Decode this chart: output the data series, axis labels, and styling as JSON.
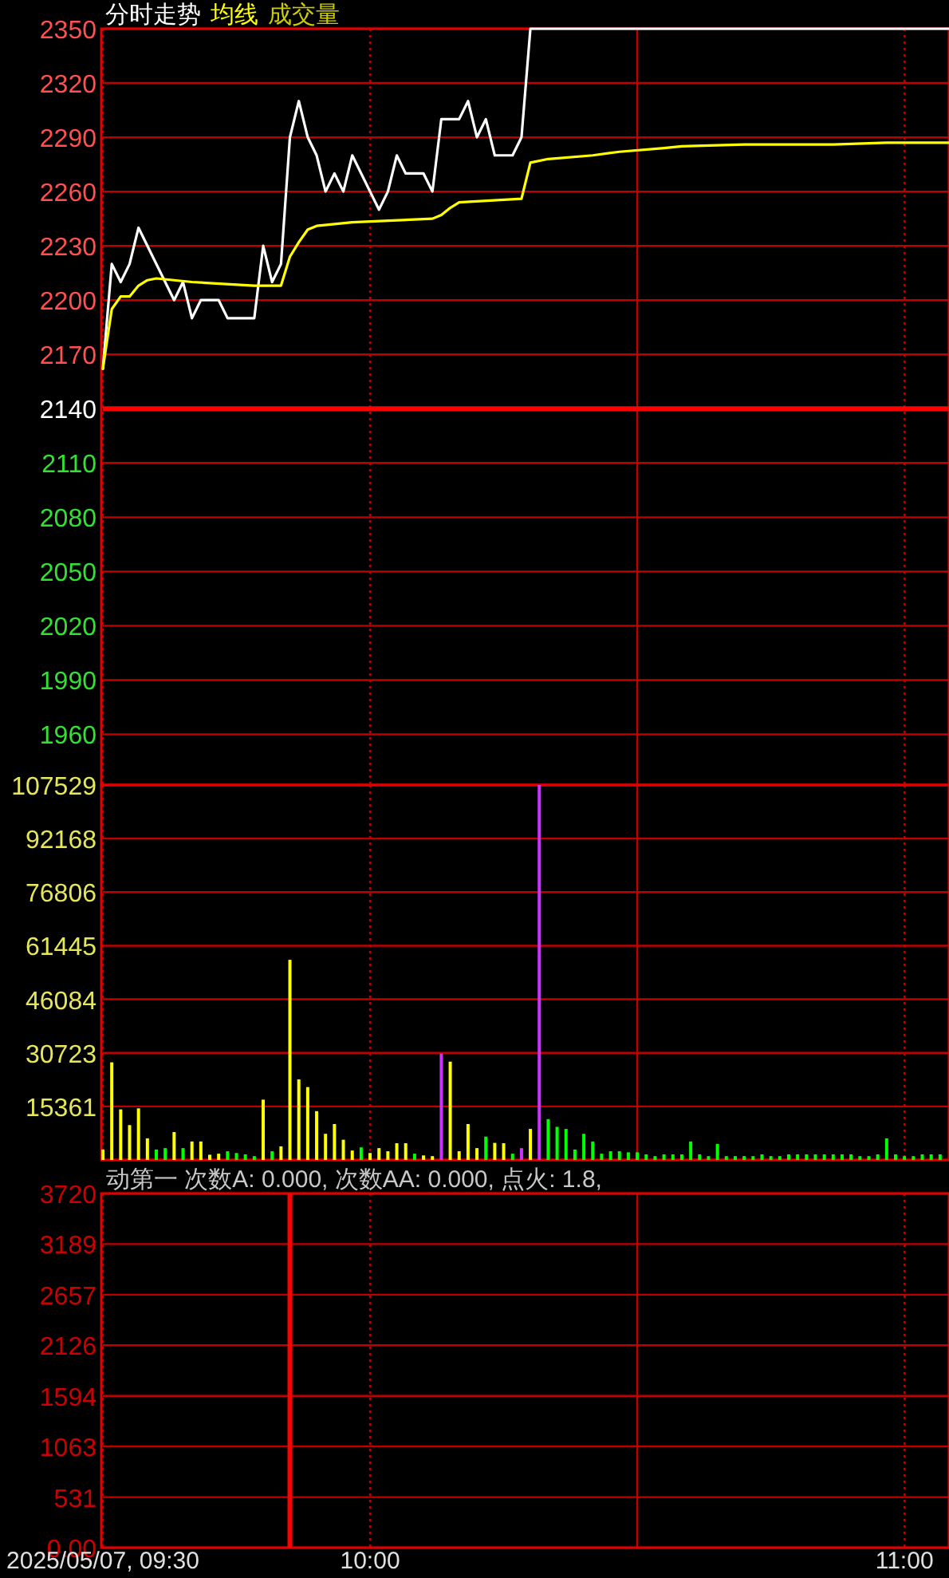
{
  "chart_data": [
    {
      "type": "line",
      "legend": "top left",
      "grid": true,
      "tick_labels": "y",
      "xlim": [
        "2025-05-07T09:30",
        "2025-05-07T11:05"
      ],
      "xticks": [
        {
          "value": "2025-05-07T09:30",
          "label": null
        },
        {
          "value": "2025-05-07T10:00",
          "label": null
        },
        {
          "value": "2025-05-07T10:30",
          "label": null
        },
        {
          "value": "2025-05-07T11:00",
          "label": null
        }
      ],
      "ylim": [
        1932,
        2350
      ],
      "yticks": [
        1960,
        1990,
        2020,
        2050,
        2080,
        2110,
        2140,
        2170,
        2200,
        2230,
        2260,
        2290,
        2320,
        2350
      ],
      "ref_lines": [
        {
          "axis": "y",
          "value": 2140,
          "color": "#ff0000"
        }
      ],
      "series": [
        {
          "name": "分时走势",
          "color": "#ffffff",
          "x": [
            "2025-05-07T09:30",
            "2025-05-07T09:31",
            "2025-05-07T09:32",
            "2025-05-07T09:33",
            "2025-05-07T09:34",
            "2025-05-07T09:38",
            "2025-05-07T09:39",
            "2025-05-07T09:40",
            "2025-05-07T09:41",
            "2025-05-07T09:43",
            "2025-05-07T09:44",
            "2025-05-07T09:47",
            "2025-05-07T09:48",
            "2025-05-07T09:49",
            "2025-05-07T09:50",
            "2025-05-07T09:51",
            "2025-05-07T09:52",
            "2025-05-07T09:53",
            "2025-05-07T09:54",
            "2025-05-07T09:55",
            "2025-05-07T09:56",
            "2025-05-07T09:57",
            "2025-05-07T09:58",
            "2025-05-07T10:01",
            "2025-05-07T10:02",
            "2025-05-07T10:03",
            "2025-05-07T10:04",
            "2025-05-07T10:06",
            "2025-05-07T10:07",
            "2025-05-07T10:08",
            "2025-05-07T10:10",
            "2025-05-07T10:11",
            "2025-05-07T10:12",
            "2025-05-07T10:13",
            "2025-05-07T10:14",
            "2025-05-07T10:16",
            "2025-05-07T10:17",
            "2025-05-07T10:18",
            "2025-05-07T11:05"
          ],
          "values": [
            2162,
            2220,
            2210,
            2220,
            2240,
            2200,
            2210,
            2190,
            2200,
            2200,
            2190,
            2190,
            2230,
            2210,
            2220,
            2290,
            2310,
            2290,
            2280,
            2260,
            2270,
            2260,
            2280,
            2250,
            2260,
            2280,
            2270,
            2270,
            2260,
            2300,
            2300,
            2310,
            2290,
            2300,
            2280,
            2280,
            2290,
            2350,
            2350
          ]
        },
        {
          "name": "均线",
          "color": "#ffff00",
          "x": [
            "2025-05-07T09:30",
            "2025-05-07T09:31",
            "2025-05-07T09:32",
            "2025-05-07T09:33",
            "2025-05-07T09:34",
            "2025-05-07T09:35",
            "2025-05-07T09:36",
            "2025-05-07T09:40",
            "2025-05-07T09:47",
            "2025-05-07T09:50",
            "2025-05-07T09:51",
            "2025-05-07T09:52",
            "2025-05-07T09:53",
            "2025-05-07T09:54",
            "2025-05-07T09:58",
            "2025-05-07T10:07",
            "2025-05-07T10:08",
            "2025-05-07T10:09",
            "2025-05-07T10:10",
            "2025-05-07T10:17",
            "2025-05-07T10:18",
            "2025-05-07T10:20",
            "2025-05-07T10:25",
            "2025-05-07T10:28",
            "2025-05-07T10:33",
            "2025-05-07T10:35",
            "2025-05-07T10:42",
            "2025-05-07T10:52",
            "2025-05-07T10:58",
            "2025-05-07T11:05"
          ],
          "values": [
            2162,
            2195,
            2202,
            2202,
            2208,
            2211,
            2212,
            2210,
            2208,
            2208,
            2224,
            2232,
            2239,
            2241,
            2243,
            2245,
            2247,
            2251,
            2254,
            2256,
            2276,
            2278,
            2280,
            2282,
            2284,
            2285,
            2286,
            2286,
            2287,
            2287
          ]
        }
      ]
    },
    {
      "type": "bar",
      "legend": "top left",
      "grid": true,
      "tick_labels": "y",
      "xlim": [
        "2025-05-07T09:30",
        "2025-05-07T11:05"
      ],
      "xticks": [
        {
          "value": "2025-05-07T09:30",
          "label": null
        },
        {
          "value": "2025-05-07T10:00",
          "label": null
        },
        {
          "value": "2025-05-07T10:30",
          "label": null
        },
        {
          "value": "2025-05-07T11:00",
          "label": null
        }
      ],
      "ylim": [
        0,
        107529
      ],
      "yticks": [
        {
          "value": 0,
          "label": null
        },
        15361,
        30723,
        46084,
        61445,
        76806,
        92168,
        107529
      ],
      "x": [
        "2025-05-07T09:30",
        "2025-05-07T09:31",
        "2025-05-07T09:32",
        "2025-05-07T09:33",
        "2025-05-07T09:34",
        "2025-05-07T09:35",
        "2025-05-07T09:36",
        "2025-05-07T09:37",
        "2025-05-07T09:38",
        "2025-05-07T09:39",
        "2025-05-07T09:40",
        "2025-05-07T09:41",
        "2025-05-07T09:42",
        "2025-05-07T09:43",
        "2025-05-07T09:44",
        "2025-05-07T09:45",
        "2025-05-07T09:46",
        "2025-05-07T09:47",
        "2025-05-07T09:48",
        "2025-05-07T09:49",
        "2025-05-07T09:50",
        "2025-05-07T09:51",
        "2025-05-07T09:52",
        "2025-05-07T09:53",
        "2025-05-07T09:54",
        "2025-05-07T09:55",
        "2025-05-07T09:56",
        "2025-05-07T09:57",
        "2025-05-07T09:58",
        "2025-05-07T09:59",
        "2025-05-07T10:00",
        "2025-05-07T10:01",
        "2025-05-07T10:02",
        "2025-05-07T10:03",
        "2025-05-07T10:04",
        "2025-05-07T10:05",
        "2025-05-07T10:06",
        "2025-05-07T10:07",
        "2025-05-07T10:08",
        "2025-05-07T10:09",
        "2025-05-07T10:10",
        "2025-05-07T10:11",
        "2025-05-07T10:12",
        "2025-05-07T10:13",
        "2025-05-07T10:14",
        "2025-05-07T10:15",
        "2025-05-07T10:16",
        "2025-05-07T10:17",
        "2025-05-07T10:18",
        "2025-05-07T10:19",
        "2025-05-07T10:20",
        "2025-05-07T10:21",
        "2025-05-07T10:22",
        "2025-05-07T10:23",
        "2025-05-07T10:24",
        "2025-05-07T10:25",
        "2025-05-07T10:26",
        "2025-05-07T10:27",
        "2025-05-07T10:28",
        "2025-05-07T10:29",
        "2025-05-07T10:30",
        "2025-05-07T10:31",
        "2025-05-07T10:32",
        "2025-05-07T10:33",
        "2025-05-07T10:34",
        "2025-05-07T10:35",
        "2025-05-07T10:36",
        "2025-05-07T10:37",
        "2025-05-07T10:38",
        "2025-05-07T10:39",
        "2025-05-07T10:40",
        "2025-05-07T10:41",
        "2025-05-07T10:42",
        "2025-05-07T10:43",
        "2025-05-07T10:44",
        "2025-05-07T10:45",
        "2025-05-07T10:46",
        "2025-05-07T10:47",
        "2025-05-07T10:48",
        "2025-05-07T10:49",
        "2025-05-07T10:50",
        "2025-05-07T10:51",
        "2025-05-07T10:52",
        "2025-05-07T10:53",
        "2025-05-07T10:54",
        "2025-05-07T10:55",
        "2025-05-07T10:56",
        "2025-05-07T10:57",
        "2025-05-07T10:58",
        "2025-05-07T10:59",
        "2025-05-07T11:00",
        "2025-05-07T11:01",
        "2025-05-07T11:02",
        "2025-05-07T11:03",
        "2025-05-07T11:04"
      ],
      "series": [
        {
          "name": "成交量",
          "color": "#cccc00",
          "values": [
            3000,
            28000,
            14500,
            10000,
            14800,
            6200,
            3000,
            3400,
            8000,
            3400,
            5300,
            5300,
            1500,
            1800,
            2500,
            2000,
            1600,
            1100,
            17300,
            2500,
            3900,
            57400,
            23100,
            20900,
            14000,
            7500,
            10300,
            5800,
            2700,
            3600,
            2000,
            3400,
            2500,
            4800,
            4800,
            1800,
            1300,
            1100,
            30500,
            28200,
            2500,
            10300,
            3400,
            6700,
            4900,
            4800,
            1800,
            3400,
            8900,
            107529,
            11700,
            9500,
            8900,
            3000,
            7500,
            5300,
            1800,
            2500,
            2500,
            2200,
            2200,
            1600,
            1100,
            1600,
            1600,
            1600,
            5300,
            1600,
            1100,
            4600,
            1100,
            1100,
            1100,
            1100,
            1600,
            1100,
            1100,
            1600,
            1600,
            1600,
            1600,
            1600,
            1600,
            1600,
            1600,
            1100,
            1100,
            1600,
            6200,
            1600,
            1100,
            1100,
            1600,
            1600,
            1600
          ],
          "colors": [
            "#ffff00",
            "#ffff00",
            "#ffff00",
            "#ffff00",
            "#ffff00",
            "#ffff00",
            "#00ff00",
            "#00ff00",
            "#ffff00",
            "#00ff00",
            "#ffff00",
            "#ffff00",
            "#ffff00",
            "#ffff00",
            "#00ff00",
            "#00ff00",
            "#00ff00",
            "#00ff00",
            "#ffff00",
            "#00ff00",
            "#ffff00",
            "#ffff00",
            "#ffff00",
            "#ffff00",
            "#ffff00",
            "#ffff00",
            "#ffff00",
            "#ffff00",
            "#ffff00",
            "#00ff00",
            "#ffff00",
            "#ffff00",
            "#ffff00",
            "#ffff00",
            "#ffff00",
            "#00ff00",
            "#ffff00",
            "#ffff00",
            "#cc33ff",
            "#ffff00",
            "#ffff00",
            "#ffff00",
            "#ffff00",
            "#00ff00",
            "#ffff00",
            "#ffff00",
            "#00ff00",
            "#cc33ff",
            "#ffff00",
            "#cc33ff",
            "#00ff00",
            "#00ff00",
            "#00ff00",
            "#00ff00",
            "#00ff00",
            "#00ff00",
            "#00ff00",
            "#00ff00",
            "#00ff00",
            "#00ff00",
            "#00ff00",
            "#00ff00",
            "#00ff00",
            "#00ff00",
            "#00ff00",
            "#00ff00",
            "#00ff00",
            "#00ff00",
            "#00ff00",
            "#00ff00",
            "#00ff00",
            "#00ff00",
            "#00ff00",
            "#00ff00",
            "#00ff00",
            "#00ff00",
            "#00ff00",
            "#00ff00",
            "#00ff00",
            "#00ff00",
            "#00ff00",
            "#00ff00",
            "#00ff00",
            "#00ff00",
            "#00ff00",
            "#00ff00",
            "#00ff00",
            "#00ff00",
            "#00ff00",
            "#00ff00",
            "#00ff00",
            "#00ff00",
            "#00ff00",
            "#00ff00",
            "#00ff00"
          ]
        }
      ]
    },
    {
      "type": "line",
      "title": "动第一 次数A: 0.000, 次数AA: 0.000, 点火: 1.8,",
      "grid": true,
      "xlim": [
        "2025-05-07T09:30",
        "2025-05-07T11:05"
      ],
      "xticks": [
        {
          "value": "2025-05-07T09:30",
          "label": "2025/05/07, 09:30"
        },
        {
          "value": "2025-05-07T10:00",
          "label": "10:00"
        },
        {
          "value": "2025-05-07T10:30",
          "label": null
        },
        {
          "value": "2025-05-07T11:00",
          "label": "11:00"
        }
      ],
      "ylim": [
        0,
        3720
      ],
      "yticks": [
        {
          "value": 0,
          "label": "0.00"
        },
        531,
        1063,
        1594,
        2126,
        2657,
        3189,
        3720
      ],
      "ref_lines": [
        {
          "axis": "x",
          "value": "2025-05-07T09:51",
          "color": "#ff0000"
        }
      ]
    }
  ]
}
